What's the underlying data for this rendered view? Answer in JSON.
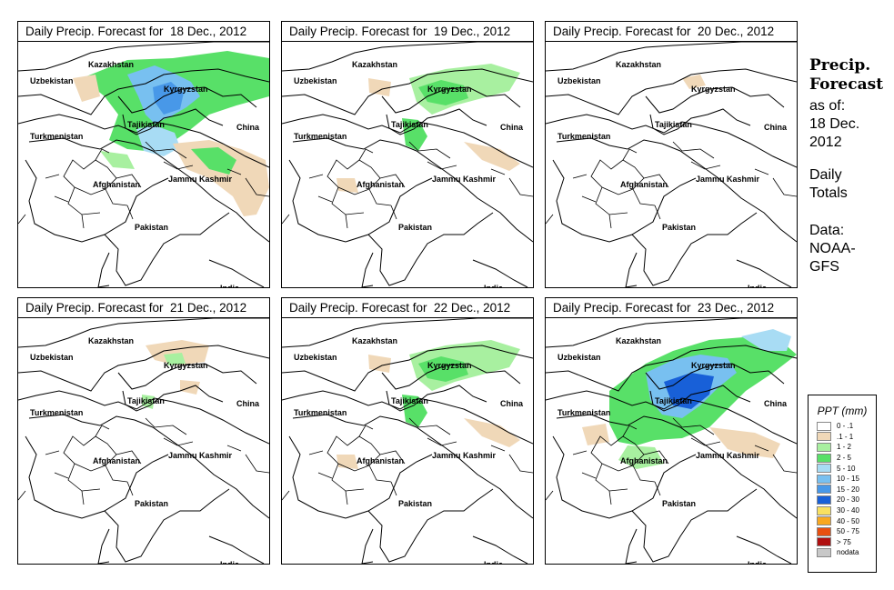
{
  "panels": [
    {
      "title": "Daily Precip. Forecast for  18 Dec., 2012",
      "intensity": "high"
    },
    {
      "title": "Daily Precip. Forecast for  19 Dec., 2012",
      "intensity": "medium"
    },
    {
      "title": "Daily Precip. Forecast for  20 Dec., 2012",
      "intensity": "none"
    },
    {
      "title": "Daily Precip. Forecast for  21 Dec., 2012",
      "intensity": "low"
    },
    {
      "title": "Daily Precip. Forecast for  22 Dec., 2012",
      "intensity": "medium"
    },
    {
      "title": "Daily Precip. Forecast for  23 Dec., 2012",
      "intensity": "very-high"
    }
  ],
  "map_labels": {
    "kazakhstan": "Kazakhstan",
    "uzbekistan": "Uzbekistan",
    "kyrgyzstan": "Kyrgyzstan",
    "tajikistan": "Tajikistan",
    "turkmenistan": "Turkmenistan",
    "china": "China",
    "jammu_kashmir": "Jammu Kashmir",
    "afghanistan": "Afghanistan",
    "pakistan": "Pakistan",
    "india": "India"
  },
  "side_panel": {
    "title_line1": "Precip.",
    "title_line2": "Forecast",
    "as_of_label": "as of:",
    "as_of_date_line1": "18 Dec.",
    "as_of_date_line2": "2012",
    "totals_line1": "Daily",
    "totals_line2": "Totals",
    "source_line1": "Data:",
    "source_line2": "NOAA-",
    "source_line3": "GFS"
  },
  "legend": {
    "title": "PPT (mm)",
    "items": [
      {
        "label": "0 - .1",
        "color": "#ffffff"
      },
      {
        "label": ".1 - 1",
        "color": "#f0d8b8"
      },
      {
        "label": "1 - 2",
        "color": "#a8f0a0"
      },
      {
        "label": "2 - 5",
        "color": "#58e068"
      },
      {
        "label": "5 - 10",
        "color": "#a8dcf4"
      },
      {
        "label": "10 - 15",
        "color": "#78c0f0"
      },
      {
        "label": "15 - 20",
        "color": "#4898e8"
      },
      {
        "label": "20 - 30",
        "color": "#1860d8"
      },
      {
        "label": "30 - 40",
        "color": "#f8e060"
      },
      {
        "label": "40 - 50",
        "color": "#f8a820"
      },
      {
        "label": "50 - 75",
        "color": "#e85010"
      },
      {
        "label": "> 75",
        "color": "#b01010"
      },
      {
        "label": "nodata",
        "color": "#c8c8c8"
      }
    ]
  }
}
